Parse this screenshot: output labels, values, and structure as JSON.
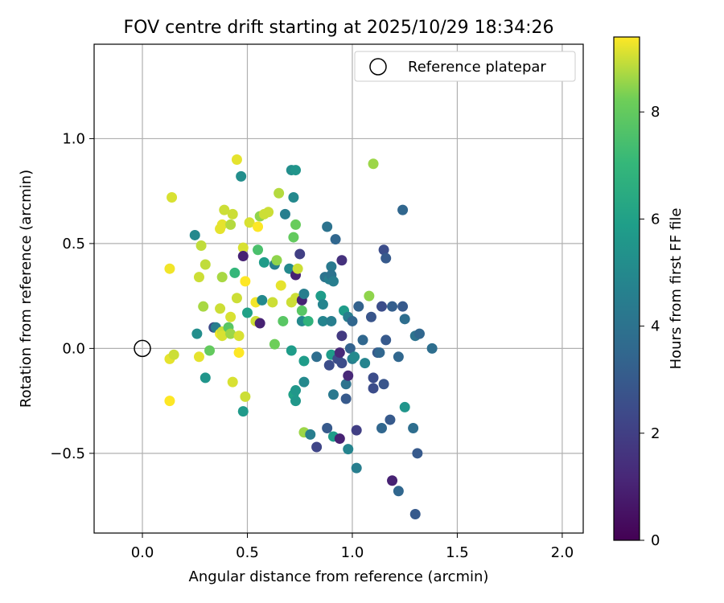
{
  "chart_data": {
    "type": "scatter",
    "title": "FOV centre drift starting at 2025/10/29 18:34:26",
    "xlabel": "Angular distance from reference (arcmin)",
    "ylabel": "Rotation from reference (arcmin)",
    "xlim": [
      -0.23,
      2.1
    ],
    "ylim": [
      -0.88,
      1.45
    ],
    "xticks": [
      0.0,
      0.5,
      1.0,
      1.5,
      2.0
    ],
    "xtick_labels": [
      "0.0",
      "0.5",
      "1.0",
      "1.5",
      "2.0"
    ],
    "yticks": [
      -0.5,
      0.0,
      0.5,
      1.0
    ],
    "ytick_labels": [
      "−0.5",
      "0.0",
      "0.5",
      "1.0"
    ],
    "grid": true,
    "legend": {
      "label": "Reference platepar",
      "placement": "top-right"
    },
    "reference_point": {
      "x": 0.0,
      "y": 0.0
    },
    "colorbar": {
      "label": "Hours from first FF file",
      "colormap": "viridis",
      "range": [
        0,
        9.4
      ],
      "ticks": [
        0,
        2,
        4,
        6,
        8
      ],
      "tick_labels": [
        "0",
        "2",
        "4",
        "6",
        "8"
      ]
    },
    "points": [
      {
        "x": 0.14,
        "y": 0.72,
        "c": 9.1
      },
      {
        "x": 0.13,
        "y": 0.38,
        "c": 9.3
      },
      {
        "x": 0.13,
        "y": -0.05,
        "c": 9.2
      },
      {
        "x": 0.15,
        "y": -0.03,
        "c": 9.0
      },
      {
        "x": 0.13,
        "y": -0.25,
        "c": 9.4
      },
      {
        "x": 0.25,
        "y": 0.54,
        "c": 5.0
      },
      {
        "x": 0.27,
        "y": 0.34,
        "c": 9.0
      },
      {
        "x": 0.28,
        "y": 0.49,
        "c": 8.9
      },
      {
        "x": 0.29,
        "y": 0.2,
        "c": 8.7
      },
      {
        "x": 0.3,
        "y": 0.4,
        "c": 8.9
      },
      {
        "x": 0.26,
        "y": 0.07,
        "c": 5.2
      },
      {
        "x": 0.27,
        "y": -0.04,
        "c": 9.2
      },
      {
        "x": 0.3,
        "y": -0.14,
        "c": 5.5
      },
      {
        "x": 0.32,
        "y": -0.01,
        "c": 8.0
      },
      {
        "x": 0.34,
        "y": 0.1,
        "c": 2.4
      },
      {
        "x": 0.35,
        "y": 0.1,
        "c": 4.5
      },
      {
        "x": 0.37,
        "y": 0.57,
        "c": 9.2
      },
      {
        "x": 0.37,
        "y": 0.19,
        "c": 9.0
      },
      {
        "x": 0.38,
        "y": 0.34,
        "c": 8.7
      },
      {
        "x": 0.38,
        "y": 0.59,
        "c": 9.2
      },
      {
        "x": 0.39,
        "y": 0.66,
        "c": 9.0
      },
      {
        "x": 0.37,
        "y": 0.07,
        "c": 9.3
      },
      {
        "x": 0.38,
        "y": 0.08,
        "c": 9.0
      },
      {
        "x": 0.38,
        "y": 0.06,
        "c": 9.1
      },
      {
        "x": 0.41,
        "y": 0.1,
        "c": 7.8
      },
      {
        "x": 0.42,
        "y": 0.15,
        "c": 9.1
      },
      {
        "x": 0.42,
        "y": 0.07,
        "c": 8.6
      },
      {
        "x": 0.42,
        "y": 0.59,
        "c": 8.8
      },
      {
        "x": 0.43,
        "y": 0.64,
        "c": 9.0
      },
      {
        "x": 0.43,
        "y": -0.16,
        "c": 9.1
      },
      {
        "x": 0.45,
        "y": 0.9,
        "c": 9.2
      },
      {
        "x": 0.47,
        "y": 0.82,
        "c": 5.2
      },
      {
        "x": 0.44,
        "y": 0.36,
        "c": 7.0
      },
      {
        "x": 0.45,
        "y": 0.24,
        "c": 9.0
      },
      {
        "x": 0.46,
        "y": 0.06,
        "c": 9.1
      },
      {
        "x": 0.46,
        "y": -0.02,
        "c": 9.4
      },
      {
        "x": 0.48,
        "y": 0.48,
        "c": 9.1
      },
      {
        "x": 0.48,
        "y": 0.44,
        "c": 1.0
      },
      {
        "x": 0.49,
        "y": 0.32,
        "c": 9.4
      },
      {
        "x": 0.49,
        "y": -0.23,
        "c": 9.0
      },
      {
        "x": 0.48,
        "y": -0.3,
        "c": 5.7
      },
      {
        "x": 0.5,
        "y": 0.17,
        "c": 6.0
      },
      {
        "x": 0.51,
        "y": 0.6,
        "c": 9.1
      },
      {
        "x": 0.54,
        "y": 0.13,
        "c": 9.0
      },
      {
        "x": 0.54,
        "y": 0.22,
        "c": 9.3
      },
      {
        "x": 0.55,
        "y": 0.47,
        "c": 7.5
      },
      {
        "x": 0.55,
        "y": 0.58,
        "c": 9.4
      },
      {
        "x": 0.56,
        "y": 0.63,
        "c": 8.5
      },
      {
        "x": 0.56,
        "y": 0.12,
        "c": 1.0
      },
      {
        "x": 0.57,
        "y": 0.23,
        "c": 5.0
      },
      {
        "x": 0.58,
        "y": 0.64,
        "c": 9.0
      },
      {
        "x": 0.58,
        "y": 0.41,
        "c": 5.8
      },
      {
        "x": 0.6,
        "y": 0.65,
        "c": 9.0
      },
      {
        "x": 0.62,
        "y": 0.22,
        "c": 9.0
      },
      {
        "x": 0.63,
        "y": 0.02,
        "c": 8.2
      },
      {
        "x": 0.63,
        "y": 0.4,
        "c": 4.5
      },
      {
        "x": 0.64,
        "y": 0.42,
        "c": 8.5
      },
      {
        "x": 0.65,
        "y": 0.74,
        "c": 8.8
      },
      {
        "x": 0.66,
        "y": 0.3,
        "c": 9.2
      },
      {
        "x": 0.67,
        "y": 0.13,
        "c": 7.8
      },
      {
        "x": 0.68,
        "y": 0.64,
        "c": 4.5
      },
      {
        "x": 0.7,
        "y": 0.38,
        "c": 5.0
      },
      {
        "x": 0.71,
        "y": 0.85,
        "c": 5.2
      },
      {
        "x": 0.71,
        "y": 0.22,
        "c": 9.0
      },
      {
        "x": 0.71,
        "y": -0.01,
        "c": 5.8
      },
      {
        "x": 0.72,
        "y": 0.72,
        "c": 5.0
      },
      {
        "x": 0.72,
        "y": 0.53,
        "c": 8.0
      },
      {
        "x": 0.72,
        "y": -0.22,
        "c": 6.0
      },
      {
        "x": 0.73,
        "y": 0.85,
        "c": 5.5
      },
      {
        "x": 0.73,
        "y": 0.59,
        "c": 8.1
      },
      {
        "x": 0.73,
        "y": 0.35,
        "c": 1.0
      },
      {
        "x": 0.73,
        "y": 0.24,
        "c": 9.0
      },
      {
        "x": 0.73,
        "y": -0.2,
        "c": 5.6
      },
      {
        "x": 0.73,
        "y": -0.25,
        "c": 5.6
      },
      {
        "x": 0.74,
        "y": 0.38,
        "c": 9.0
      },
      {
        "x": 0.75,
        "y": 0.45,
        "c": 2.0
      },
      {
        "x": 0.76,
        "y": 0.23,
        "c": 1.0
      },
      {
        "x": 0.76,
        "y": 0.18,
        "c": 7.8
      },
      {
        "x": 0.76,
        "y": 0.13,
        "c": 5.0
      },
      {
        "x": 0.77,
        "y": 0.26,
        "c": 4.5
      },
      {
        "x": 0.77,
        "y": -0.06,
        "c": 5.8
      },
      {
        "x": 0.77,
        "y": -0.16,
        "c": 5.0
      },
      {
        "x": 0.77,
        "y": -0.4,
        "c": 8.6
      },
      {
        "x": 0.79,
        "y": 0.13,
        "c": 6.8
      },
      {
        "x": 0.8,
        "y": -0.41,
        "c": 4.5
      },
      {
        "x": 0.83,
        "y": -0.04,
        "c": 3.8
      },
      {
        "x": 0.83,
        "y": -0.47,
        "c": 2.2
      },
      {
        "x": 0.85,
        "y": 0.25,
        "c": 5.8
      },
      {
        "x": 0.86,
        "y": 0.21,
        "c": 4.8
      },
      {
        "x": 0.86,
        "y": 0.13,
        "c": 4.8
      },
      {
        "x": 0.87,
        "y": 0.34,
        "c": 4.0
      },
      {
        "x": 0.88,
        "y": 0.58,
        "c": 4.0
      },
      {
        "x": 0.88,
        "y": -0.38,
        "c": 3.0
      },
      {
        "x": 0.89,
        "y": -0.08,
        "c": 2.5
      },
      {
        "x": 0.89,
        "y": 0.33,
        "c": 4.5
      },
      {
        "x": 0.9,
        "y": 0.39,
        "c": 4.3
      },
      {
        "x": 0.9,
        "y": 0.35,
        "c": 4.0
      },
      {
        "x": 0.9,
        "y": 0.13,
        "c": 4.5
      },
      {
        "x": 0.9,
        "y": -0.03,
        "c": 5.8
      },
      {
        "x": 0.91,
        "y": 0.32,
        "c": 4.5
      },
      {
        "x": 0.91,
        "y": -0.22,
        "c": 4.3
      },
      {
        "x": 0.91,
        "y": -0.42,
        "c": 5.8
      },
      {
        "x": 0.92,
        "y": 0.52,
        "c": 3.5
      },
      {
        "x": 0.93,
        "y": -0.05,
        "c": 2.5
      },
      {
        "x": 0.94,
        "y": -0.02,
        "c": 1.2
      },
      {
        "x": 0.94,
        "y": -0.43,
        "c": 1.0
      },
      {
        "x": 0.95,
        "y": 0.42,
        "c": 1.5
      },
      {
        "x": 0.95,
        "y": 0.06,
        "c": 1.8
      },
      {
        "x": 0.95,
        "y": -0.07,
        "c": 2.5
      },
      {
        "x": 0.96,
        "y": 0.18,
        "c": 5.8
      },
      {
        "x": 0.97,
        "y": -0.24,
        "c": 3.0
      },
      {
        "x": 0.97,
        "y": -0.17,
        "c": 4.0
      },
      {
        "x": 0.98,
        "y": 0.15,
        "c": 4.5
      },
      {
        "x": 0.98,
        "y": -0.48,
        "c": 4.8
      },
      {
        "x": 0.98,
        "y": -0.13,
        "c": 1.2
      },
      {
        "x": 0.99,
        "y": 0.0,
        "c": 3.3
      },
      {
        "x": 1.0,
        "y": 0.13,
        "c": 3.5
      },
      {
        "x": 1.0,
        "y": -0.05,
        "c": 4.5
      },
      {
        "x": 1.01,
        "y": -0.04,
        "c": 5.0
      },
      {
        "x": 1.02,
        "y": -0.39,
        "c": 2.0
      },
      {
        "x": 1.02,
        "y": -0.57,
        "c": 4.5
      },
      {
        "x": 1.03,
        "y": 0.2,
        "c": 3.3
      },
      {
        "x": 1.05,
        "y": 0.04,
        "c": 3.5
      },
      {
        "x": 1.06,
        "y": -0.07,
        "c": 4.8
      },
      {
        "x": 1.08,
        "y": 0.25,
        "c": 8.5
      },
      {
        "x": 1.09,
        "y": 0.15,
        "c": 2.8
      },
      {
        "x": 1.1,
        "y": 0.88,
        "c": 8.6
      },
      {
        "x": 1.1,
        "y": -0.14,
        "c": 2.5
      },
      {
        "x": 1.1,
        "y": -0.19,
        "c": 2.5
      },
      {
        "x": 1.12,
        "y": -0.02,
        "c": 3.0
      },
      {
        "x": 1.13,
        "y": -0.02,
        "c": 3.5
      },
      {
        "x": 1.14,
        "y": 0.2,
        "c": 2.5
      },
      {
        "x": 1.14,
        "y": -0.38,
        "c": 3.5
      },
      {
        "x": 1.15,
        "y": 0.47,
        "c": 2.5
      },
      {
        "x": 1.15,
        "y": -0.17,
        "c": 2.8
      },
      {
        "x": 1.16,
        "y": 0.43,
        "c": 3.0
      },
      {
        "x": 1.16,
        "y": 0.04,
        "c": 3.0
      },
      {
        "x": 1.18,
        "y": -0.34,
        "c": 3.0
      },
      {
        "x": 1.19,
        "y": 0.2,
        "c": 3.2
      },
      {
        "x": 1.19,
        "y": -0.63,
        "c": 1.0
      },
      {
        "x": 1.22,
        "y": -0.68,
        "c": 3.5
      },
      {
        "x": 1.22,
        "y": -0.04,
        "c": 3.5
      },
      {
        "x": 1.24,
        "y": 0.66,
        "c": 3.5
      },
      {
        "x": 1.24,
        "y": 0.2,
        "c": 3.0
      },
      {
        "x": 1.25,
        "y": 0.14,
        "c": 3.8
      },
      {
        "x": 1.25,
        "y": -0.28,
        "c": 5.5
      },
      {
        "x": 1.29,
        "y": -0.38,
        "c": 3.8
      },
      {
        "x": 1.3,
        "y": 0.06,
        "c": 4.0
      },
      {
        "x": 1.3,
        "y": -0.79,
        "c": 3.0
      },
      {
        "x": 1.31,
        "y": -0.5,
        "c": 3.0
      },
      {
        "x": 1.32,
        "y": 0.07,
        "c": 3.5
      },
      {
        "x": 1.38,
        "y": 0.0,
        "c": 3.8
      }
    ]
  }
}
